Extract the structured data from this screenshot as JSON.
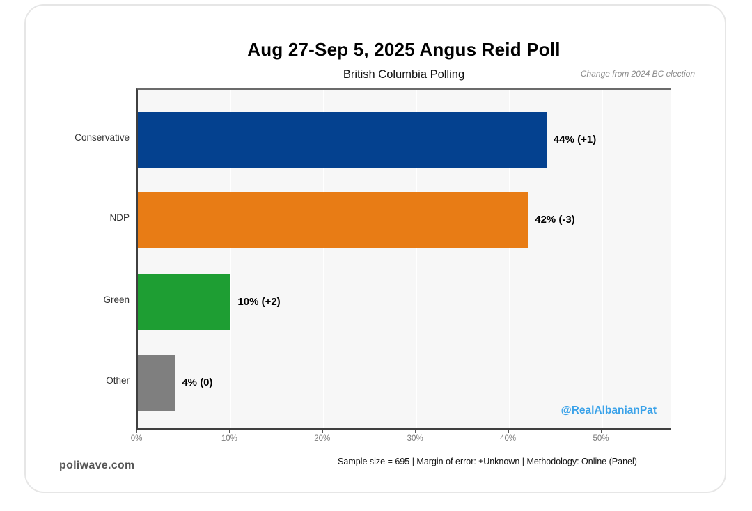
{
  "page": {
    "title": "Aug 27-Sep 5, 2025 Angus Reid Poll",
    "subtitle": "British Columbia Polling",
    "change_note": "Change from 2024 BC election",
    "watermark": "@RealAlbanianPat",
    "site": "poliwave.com",
    "footer": "Sample size = 695   |   Margin of error: ±Unknown   |   Methodology: Online (Panel)"
  },
  "chart_data": {
    "type": "bar",
    "orientation": "horizontal",
    "title": "Aug 27-Sep 5, 2025 Angus Reid Poll",
    "subtitle": "British Columbia Polling",
    "annotation": "Change from 2024 BC election",
    "categories": [
      "Conservative",
      "NDP",
      "Green",
      "Other"
    ],
    "values": [
      44,
      42,
      10,
      4
    ],
    "changes": [
      "+1",
      "-3",
      "+2",
      "0"
    ],
    "bar_labels": [
      "44% (+1)",
      "42% (-3)",
      "10% (+2)",
      "4% (0)"
    ],
    "bar_colors": [
      "#04418F",
      "#E87C15",
      "#1E9E33",
      "#7F7F7F"
    ],
    "xlim": [
      0,
      57.5
    ],
    "x_ticks": [
      "0%",
      "10%",
      "20%",
      "30%",
      "40%",
      "50%"
    ],
    "x_tick_values": [
      0,
      10,
      20,
      30,
      40,
      50
    ],
    "grid": true,
    "plot_background": "#f7f7f7",
    "gridline_color": "#ffffff",
    "watermark_color": "#3AA2E9",
    "legend": "none"
  }
}
